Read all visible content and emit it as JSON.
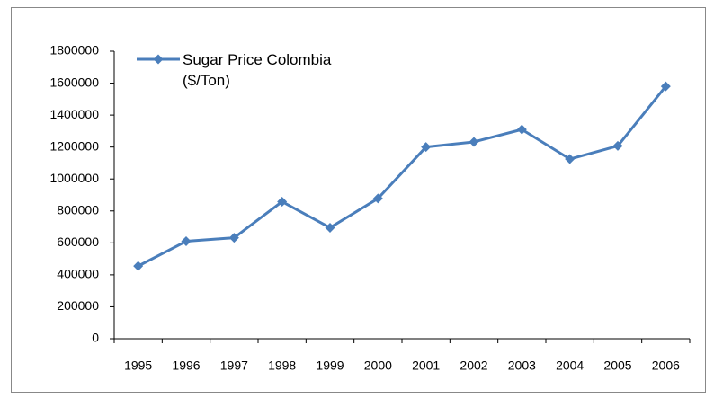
{
  "chart_data": {
    "type": "line",
    "categories": [
      "1995",
      "1996",
      "1997",
      "1998",
      "1999",
      "2000",
      "2001",
      "2002",
      "2003",
      "2004",
      "2005",
      "2006"
    ],
    "series": [
      {
        "name": "Sugar Price Colombia ($/Ton)",
        "color": "#4a7ebb",
        "values": [
          455000,
          610000,
          632000,
          858000,
          695000,
          878000,
          1200000,
          1232000,
          1310000,
          1125000,
          1207000,
          1580000
        ]
      }
    ],
    "ylim": [
      0,
      1800000
    ],
    "yticks": [
      0,
      200000,
      400000,
      600000,
      800000,
      1000000,
      1200000,
      1400000,
      1600000,
      1800000
    ],
    "grid": false,
    "legend": "top-left"
  }
}
